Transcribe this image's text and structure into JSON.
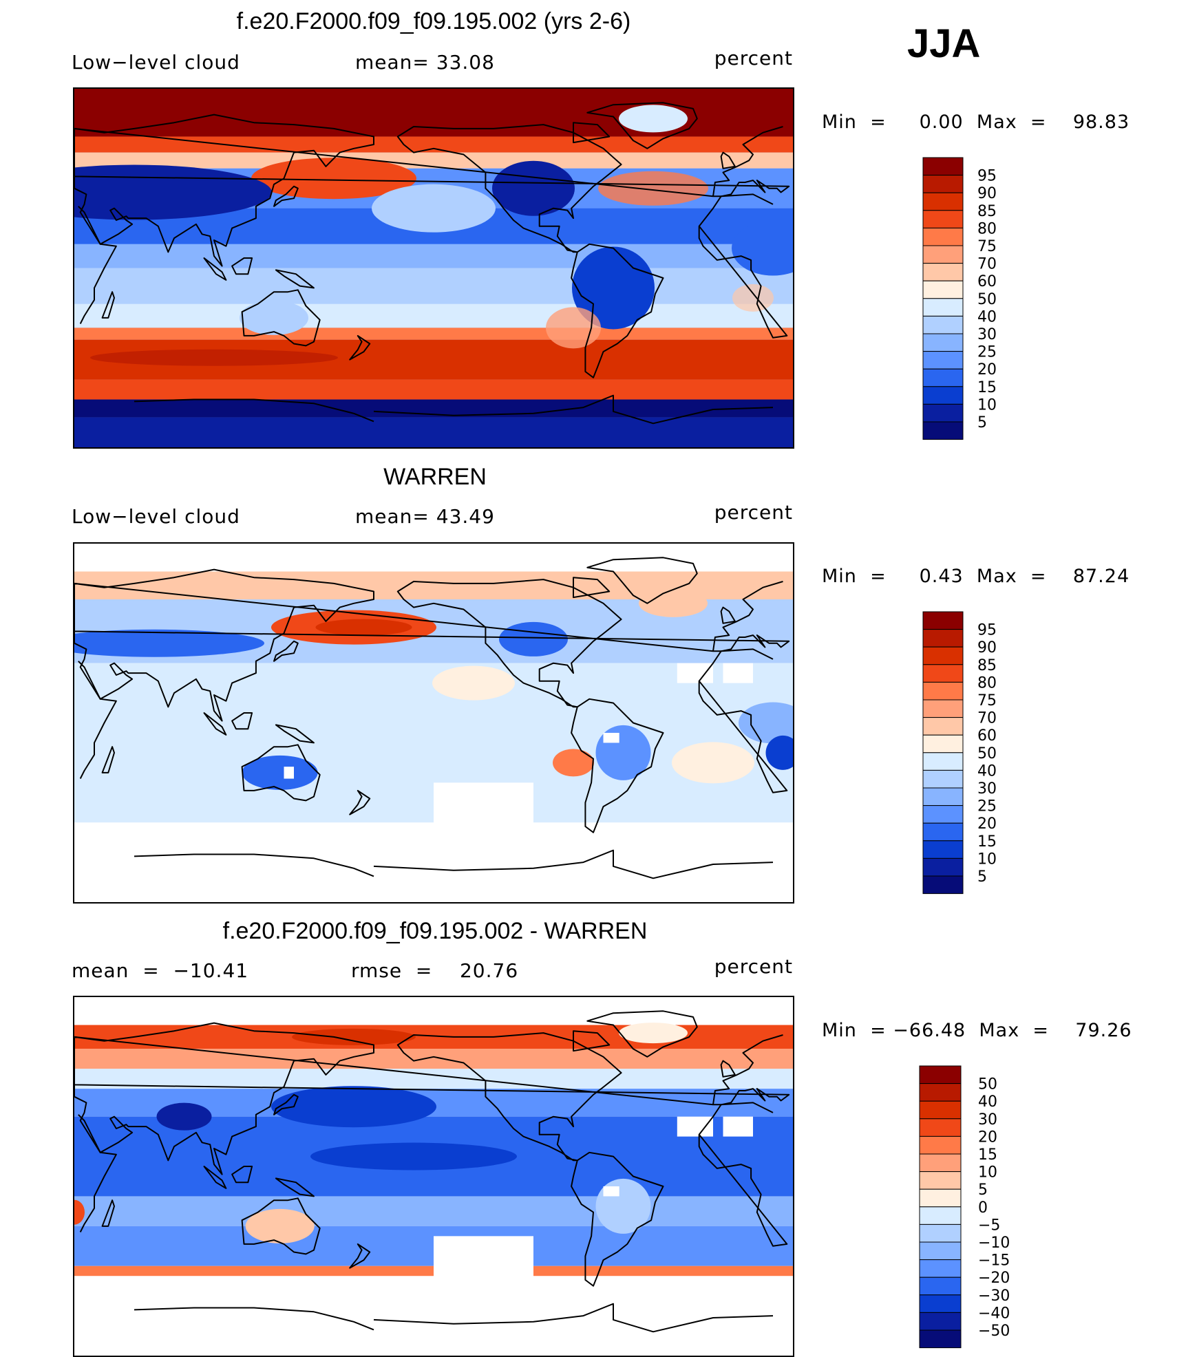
{
  "season": "JJA",
  "panels": [
    {
      "title": "f.e20.F2000.f09_f09.195.002 (yrs 2-6)",
      "left_label": "Low−level cloud",
      "mid_label": "mean=   33.08",
      "right_label": "percent",
      "minmax": "Min  =     0.00  Max  =    98.83",
      "colorbar_levels": [
        "95",
        "90",
        "85",
        "80",
        "75",
        "70",
        "60",
        "50",
        "40",
        "30",
        "25",
        "20",
        "15",
        "10",
        "5"
      ],
      "colorbar_colors": [
        "#8b0000",
        "#b81a00",
        "#d93000",
        "#f04818",
        "#ff7a48",
        "#ffa07a",
        "#ffc8a8",
        "#fff0e0",
        "#d8ecff",
        "#b0d0ff",
        "#88b4ff",
        "#5c92ff",
        "#2a66f0",
        "#0a3ed0",
        "#0a1fa0",
        "#060c78"
      ]
    },
    {
      "title": "WARREN",
      "left_label": "Low−level cloud",
      "mid_label": "mean=   43.49",
      "right_label": "percent",
      "minmax": "Min  =     0.43  Max  =    87.24",
      "colorbar_levels": [
        "95",
        "90",
        "85",
        "80",
        "75",
        "70",
        "60",
        "50",
        "40",
        "30",
        "25",
        "20",
        "15",
        "10",
        "5"
      ],
      "colorbar_colors": [
        "#8b0000",
        "#b81a00",
        "#d93000",
        "#f04818",
        "#ff7a48",
        "#ffa07a",
        "#ffc8a8",
        "#fff0e0",
        "#d8ecff",
        "#b0d0ff",
        "#88b4ff",
        "#5c92ff",
        "#2a66f0",
        "#0a3ed0",
        "#0a1fa0",
        "#060c78"
      ]
    },
    {
      "title": "f.e20.F2000.f09_f09.195.002 - WARREN",
      "left_label": "mean  =  −10.41",
      "mid_label": "rmse  =    20.76",
      "right_label": "percent",
      "minmax": "Min  = −66.48  Max  =    79.26",
      "colorbar_levels": [
        "50",
        "40",
        "30",
        "20",
        "15",
        "10",
        "5",
        "0",
        "−5",
        "−10",
        "−15",
        "−20",
        "−30",
        "−40",
        "−50"
      ],
      "colorbar_colors": [
        "#8b0000",
        "#b81a00",
        "#d93000",
        "#f04818",
        "#ff7a48",
        "#ffa07a",
        "#ffc8a8",
        "#fff0e0",
        "#d8ecff",
        "#b0d0ff",
        "#88b4ff",
        "#5c92ff",
        "#2a66f0",
        "#0a3ed0",
        "#0a1fa0",
        "#060c78"
      ]
    }
  ],
  "chart_data": [
    {
      "type": "heatmap",
      "title": "f.e20.F2000.f09_f09.195.002 (yrs 2-6)",
      "variable": "Low−level cloud",
      "units": "percent",
      "mean": 33.08,
      "min": 0.0,
      "max": 98.83,
      "levels": [
        5,
        10,
        15,
        20,
        25,
        30,
        40,
        50,
        60,
        70,
        75,
        80,
        85,
        90,
        95
      ]
    },
    {
      "type": "heatmap",
      "title": "WARREN",
      "variable": "Low−level cloud",
      "units": "percent",
      "mean": 43.49,
      "min": 0.43,
      "max": 87.24,
      "levels": [
        5,
        10,
        15,
        20,
        25,
        30,
        40,
        50,
        60,
        70,
        75,
        80,
        85,
        90,
        95
      ]
    },
    {
      "type": "heatmap",
      "title": "f.e20.F2000.f09_f09.195.002 - WARREN",
      "units": "percent",
      "mean": -10.41,
      "rmse": 20.76,
      "min": -66.48,
      "max": 79.26,
      "levels": [
        -50,
        -40,
        -30,
        -20,
        -15,
        -10,
        -5,
        0,
        5,
        10,
        15,
        20,
        30,
        40,
        50
      ]
    }
  ]
}
